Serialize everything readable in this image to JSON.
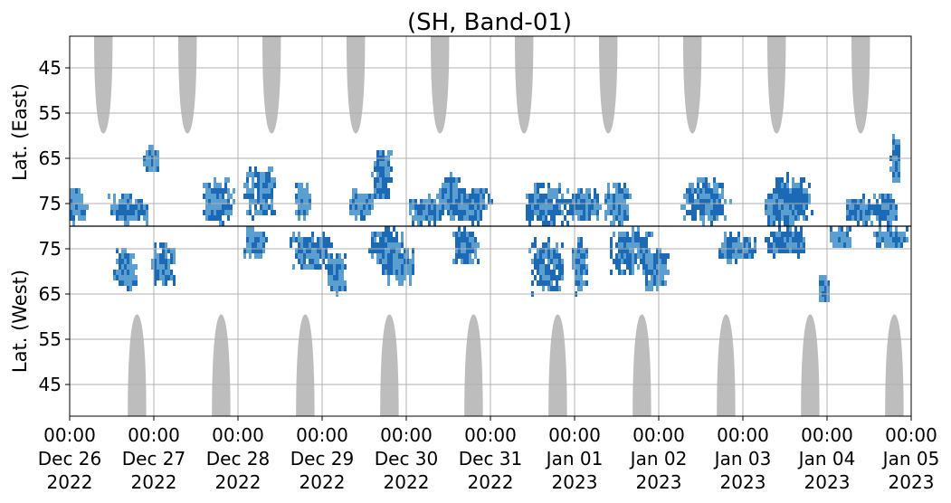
{
  "chart_data": {
    "type": "heatmap",
    "title": "(SH, Band-01)",
    "xlabel": "",
    "ylabel_top": "Lat. (East)",
    "ylabel_bottom": "Lat. (West)",
    "x_ticks": [
      {
        "time": "00:00",
        "date": "Dec 26",
        "year": "2022"
      },
      {
        "time": "00:00",
        "date": "Dec 27",
        "year": "2022"
      },
      {
        "time": "00:00",
        "date": "Dec 28",
        "year": "2022"
      },
      {
        "time": "00:00",
        "date": "Dec 29",
        "year": "2022"
      },
      {
        "time": "00:00",
        "date": "Dec 30",
        "year": "2022"
      },
      {
        "time": "00:00",
        "date": "Dec 31",
        "year": "2022"
      },
      {
        "time": "00:00",
        "date": "Jan 01",
        "year": "2023"
      },
      {
        "time": "00:00",
        "date": "Jan 02",
        "year": "2023"
      },
      {
        "time": "00:00",
        "date": "Jan 03",
        "year": "2023"
      },
      {
        "time": "00:00",
        "date": "Jan 04",
        "year": "2023"
      },
      {
        "time": "00:00",
        "date": "Jan 05",
        "year": "2023"
      }
    ],
    "xlim": [
      "2022-12-26 00:00",
      "2023-01-05 00:00"
    ],
    "y_axis_note": "folded latitude axis: top half East (38 at top to 80 at center), bottom half West (80 at center to 38 at bottom)",
    "y_ticks_east": [
      "45",
      "55",
      "65",
      "75"
    ],
    "y_ticks_west": [
      "75",
      "65",
      "55",
      "45"
    ],
    "y_tick_values_east": [
      45,
      55,
      65,
      75
    ],
    "y_tick_values_west": [
      75,
      65,
      55,
      45
    ],
    "ylim": [
      38,
      80
    ],
    "grid": true,
    "colors": {
      "no_data": "#bdbdbd",
      "detection_light": "#5a9fd0",
      "detection_dark": "#1c6ab5",
      "center_line": "#000000",
      "grid": "#b0b0b0"
    },
    "no_data_east": [
      {
        "day": 0.4,
        "min_lat": 59.5
      },
      {
        "day": 1.4,
        "min_lat": 59.5
      },
      {
        "day": 2.4,
        "min_lat": 59.5
      },
      {
        "day": 3.4,
        "min_lat": 59.5
      },
      {
        "day": 4.4,
        "min_lat": 59.5
      },
      {
        "day": 5.4,
        "min_lat": 59.5
      },
      {
        "day": 6.4,
        "min_lat": 59.5
      },
      {
        "day": 7.4,
        "min_lat": 59.5
      },
      {
        "day": 8.4,
        "min_lat": 59.5
      },
      {
        "day": 9.4,
        "min_lat": 59.5
      }
    ],
    "no_data_west": [
      {
        "day": 0.8,
        "min_lat": 60.5
      },
      {
        "day": 1.8,
        "min_lat": 60.5
      },
      {
        "day": 2.8,
        "min_lat": 60.5
      },
      {
        "day": 3.8,
        "min_lat": 60.5
      },
      {
        "day": 4.8,
        "min_lat": 60.5
      },
      {
        "day": 5.8,
        "min_lat": 60.5
      },
      {
        "day": 6.8,
        "min_lat": 60.5
      },
      {
        "day": 7.8,
        "min_lat": 60.5
      },
      {
        "day": 8.8,
        "min_lat": 60.5
      },
      {
        "day": 9.8,
        "min_lat": 60.5
      }
    ],
    "detection_clusters": [
      {
        "day": 0.05,
        "side": "east",
        "lat": 76,
        "spread_day": 0.15,
        "spread_lat": 4,
        "density": 0.4
      },
      {
        "day": 0.7,
        "side": "east",
        "lat": 77,
        "spread_day": 0.25,
        "spread_lat": 3,
        "density": 0.6
      },
      {
        "day": 0.95,
        "side": "east",
        "lat": 66,
        "spread_day": 0.08,
        "spread_lat": 3,
        "density": 0.5
      },
      {
        "day": 0.65,
        "side": "west",
        "lat": 71,
        "spread_day": 0.15,
        "spread_lat": 5,
        "density": 0.4
      },
      {
        "day": 1.1,
        "side": "west",
        "lat": 72,
        "spread_day": 0.15,
        "spread_lat": 5,
        "density": 0.6
      },
      {
        "day": 1.75,
        "side": "east",
        "lat": 75,
        "spread_day": 0.2,
        "spread_lat": 5,
        "density": 0.6
      },
      {
        "day": 2.25,
        "side": "east",
        "lat": 73,
        "spread_day": 0.2,
        "spread_lat": 6,
        "density": 0.5
      },
      {
        "day": 2.2,
        "side": "west",
        "lat": 77,
        "spread_day": 0.15,
        "spread_lat": 3,
        "density": 0.5
      },
      {
        "day": 2.75,
        "side": "east",
        "lat": 75,
        "spread_day": 0.1,
        "spread_lat": 4,
        "density": 0.4
      },
      {
        "day": 2.85,
        "side": "west",
        "lat": 75,
        "spread_day": 0.25,
        "spread_lat": 4,
        "density": 0.75
      },
      {
        "day": 3.15,
        "side": "west",
        "lat": 70,
        "spread_day": 0.12,
        "spread_lat": 5,
        "density": 0.6
      },
      {
        "day": 3.45,
        "side": "east",
        "lat": 76,
        "spread_day": 0.15,
        "spread_lat": 3,
        "density": 0.4
      },
      {
        "day": 3.7,
        "side": "east",
        "lat": 69,
        "spread_day": 0.12,
        "spread_lat": 6,
        "density": 0.6
      },
      {
        "day": 3.75,
        "side": "west",
        "lat": 76,
        "spread_day": 0.2,
        "spread_lat": 4,
        "density": 0.7
      },
      {
        "day": 3.9,
        "side": "west",
        "lat": 72,
        "spread_day": 0.2,
        "spread_lat": 4,
        "density": 0.5
      },
      {
        "day": 4.2,
        "side": "east",
        "lat": 77,
        "spread_day": 0.2,
        "spread_lat": 3,
        "density": 0.6
      },
      {
        "day": 4.5,
        "side": "east",
        "lat": 74,
        "spread_day": 0.15,
        "spread_lat": 5,
        "density": 0.6
      },
      {
        "day": 4.7,
        "side": "west",
        "lat": 76,
        "spread_day": 0.15,
        "spread_lat": 4,
        "density": 0.7
      },
      {
        "day": 4.75,
        "side": "east",
        "lat": 76,
        "spread_day": 0.25,
        "spread_lat": 4,
        "density": 0.7
      },
      {
        "day": 5.65,
        "side": "east",
        "lat": 76,
        "spread_day": 0.3,
        "spread_lat": 5,
        "density": 0.8
      },
      {
        "day": 5.65,
        "side": "west",
        "lat": 72,
        "spread_day": 0.2,
        "spread_lat": 6,
        "density": 0.75
      },
      {
        "day": 6.1,
        "side": "east",
        "lat": 76,
        "spread_day": 0.2,
        "spread_lat": 4,
        "density": 0.6
      },
      {
        "day": 6.05,
        "side": "west",
        "lat": 72,
        "spread_day": 0.1,
        "spread_lat": 6,
        "density": 0.5
      },
      {
        "day": 6.5,
        "side": "east",
        "lat": 76,
        "spread_day": 0.15,
        "spread_lat": 5,
        "density": 0.5
      },
      {
        "day": 6.65,
        "side": "west",
        "lat": 75,
        "spread_day": 0.25,
        "spread_lat": 5,
        "density": 0.8
      },
      {
        "day": 6.95,
        "side": "west",
        "lat": 71,
        "spread_day": 0.15,
        "spread_lat": 5,
        "density": 0.4
      },
      {
        "day": 7.55,
        "side": "east",
        "lat": 75,
        "spread_day": 0.3,
        "spread_lat": 5,
        "density": 0.75
      },
      {
        "day": 7.9,
        "side": "west",
        "lat": 76,
        "spread_day": 0.25,
        "spread_lat": 3,
        "density": 0.6
      },
      {
        "day": 8.4,
        "side": "east",
        "lat": 77,
        "spread_day": 0.15,
        "spread_lat": 4,
        "density": 0.5
      },
      {
        "day": 8.55,
        "side": "east",
        "lat": 75,
        "spread_day": 0.25,
        "spread_lat": 6,
        "density": 0.8
      },
      {
        "day": 8.5,
        "side": "west",
        "lat": 77,
        "spread_day": 0.25,
        "spread_lat": 3,
        "density": 0.85
      },
      {
        "day": 8.95,
        "side": "west",
        "lat": 67,
        "spread_day": 0.06,
        "spread_lat": 3,
        "density": 0.4
      },
      {
        "day": 9.35,
        "side": "east",
        "lat": 77,
        "spread_day": 0.15,
        "spread_lat": 3,
        "density": 0.6
      },
      {
        "day": 9.15,
        "side": "west",
        "lat": 78,
        "spread_day": 0.12,
        "spread_lat": 2,
        "density": 0.5
      },
      {
        "day": 9.65,
        "side": "east",
        "lat": 77,
        "spread_day": 0.2,
        "spread_lat": 3,
        "density": 0.6
      },
      {
        "day": 9.8,
        "side": "east",
        "lat": 66,
        "spread_day": 0.05,
        "spread_lat": 5,
        "density": 0.5
      },
      {
        "day": 9.75,
        "side": "west",
        "lat": 78,
        "spread_day": 0.2,
        "spread_lat": 2,
        "density": 0.6
      }
    ]
  }
}
